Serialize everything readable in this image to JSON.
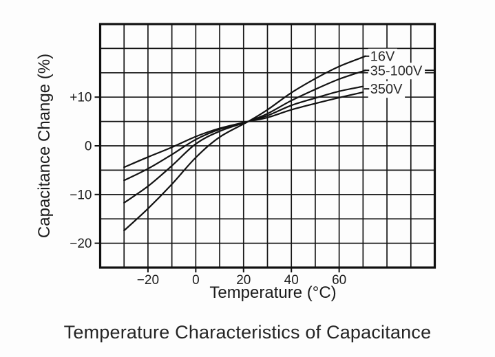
{
  "caption": "Temperature Characteristics of Capacitance",
  "chart_data": {
    "type": "line",
    "title": "Temperature Characteristics of Capacitance",
    "xlabel": "Temperature (°C)",
    "ylabel": "Capacitance Change (%)",
    "xlim": [
      -40,
      100
    ],
    "ylim": [
      -25,
      25
    ],
    "x_grid_step": 10,
    "y_grid_step": 5,
    "grid": true,
    "line_color": "#121212",
    "x_ticks": [
      {
        "value": -20,
        "label": "−20"
      },
      {
        "value": 0,
        "label": "0"
      },
      {
        "value": 20,
        "label": "20"
      },
      {
        "value": 40,
        "label": "40"
      },
      {
        "value": 60,
        "label": "60"
      }
    ],
    "y_ticks": [
      {
        "value": 10,
        "label": "+10"
      },
      {
        "value": 0,
        "label": "0"
      },
      {
        "value": -10,
        "label": "−10"
      },
      {
        "value": -20,
        "label": "−20"
      }
    ],
    "series": [
      {
        "name": "16V",
        "points": [
          [
            -30,
            -17.4
          ],
          [
            -20,
            -12.9
          ],
          [
            -10,
            -7.9
          ],
          [
            0,
            -2.4
          ],
          [
            10,
            1.8
          ],
          [
            22,
            5.0
          ],
          [
            30,
            7.4
          ],
          [
            40,
            10.9
          ],
          [
            50,
            13.8
          ],
          [
            60,
            16.3
          ],
          [
            71,
            18.4
          ]
        ]
      },
      {
        "name": "100V",
        "points": [
          [
            -30,
            -11.7
          ],
          [
            -20,
            -8.3
          ],
          [
            -10,
            -4.1
          ],
          [
            0,
            0.4
          ],
          [
            10,
            3.0
          ],
          [
            22,
            5.0
          ],
          [
            30,
            6.6
          ],
          [
            40,
            9.3
          ],
          [
            50,
            11.6
          ],
          [
            60,
            13.7
          ],
          [
            71,
            15.5
          ]
        ]
      },
      {
        "name": "35V",
        "points": [
          [
            -30,
            -7.1
          ],
          [
            -20,
            -4.7
          ],
          [
            -10,
            -1.8
          ],
          [
            0,
            1.3
          ],
          [
            10,
            3.4
          ],
          [
            22,
            5.0
          ],
          [
            30,
            6.2
          ],
          [
            40,
            8.3
          ],
          [
            50,
            9.8
          ],
          [
            60,
            11.2
          ],
          [
            70,
            12.2
          ]
        ]
      },
      {
        "name": "350V",
        "points": [
          [
            -30,
            -4.4
          ],
          [
            -20,
            -2.3
          ],
          [
            -10,
            -0.3
          ],
          [
            0,
            1.9
          ],
          [
            10,
            3.6
          ],
          [
            22,
            5.0
          ],
          [
            30,
            5.8
          ],
          [
            40,
            7.4
          ],
          [
            50,
            8.7
          ],
          [
            60,
            9.9
          ],
          [
            70,
            11.0
          ]
        ]
      }
    ],
    "annotations": [
      {
        "text": "16V",
        "label_x": 73,
        "label_y": 18.4,
        "trailing_dash": false
      },
      {
        "text": "35-100V",
        "label_x": 73,
        "label_y": 15.5,
        "trailing_dash": true
      },
      {
        "text": "350V",
        "label_x": 73,
        "label_y": 11.7,
        "trailing_dash": false
      }
    ]
  }
}
